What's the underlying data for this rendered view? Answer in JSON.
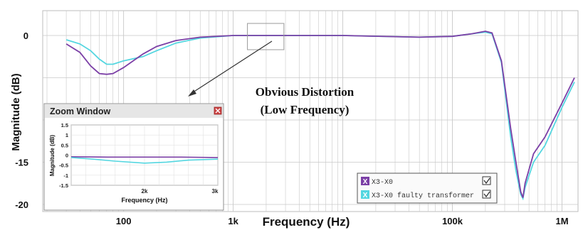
{
  "colors": {
    "series1": "#7b3fa6",
    "series2": "#53d6e0",
    "grid": "#c8c8c8",
    "zoom_box": "#9a9a9a",
    "zoom_title_bg": "#e6e6e6",
    "zoom_close": "#cc4444",
    "legend_bg": "#fafafa"
  },
  "icons": {
    "zoom_close": "close-icon",
    "legend_toggle": "checkbox-icon"
  },
  "chart_data": [
    {
      "type": "line",
      "title": "",
      "xlabel": "Frequency (Hz)",
      "ylabel": "Magnitude (dB)",
      "xscale": "log",
      "xlim": [
        20,
        1400000
      ],
      "ylim": [
        -21,
        2
      ],
      "yticks": [
        0,
        -15,
        -20
      ],
      "ytick_labels": [
        "0",
        "-15",
        "-20"
      ],
      "xticks": [
        100,
        1000,
        100000,
        1000000
      ],
      "xtick_labels": [
        "100",
        "1k",
        "100k",
        "1M"
      ],
      "grid": true,
      "legend_position": "bottom-right",
      "series": [
        {
          "name": "X3-X0",
          "points": [
            [
              30,
              -1.0
            ],
            [
              40,
              -2.0
            ],
            [
              50,
              -3.6
            ],
            [
              60,
              -4.5
            ],
            [
              70,
              -4.6
            ],
            [
              80,
              -4.5
            ],
            [
              100,
              -3.8
            ],
            [
              150,
              -2.2
            ],
            [
              200,
              -1.3
            ],
            [
              300,
              -0.6
            ],
            [
              500,
              -0.2
            ],
            [
              1000,
              0
            ],
            [
              2000,
              0
            ],
            [
              10000,
              0
            ],
            [
              50000,
              -0.2
            ],
            [
              100000,
              -0.1
            ],
            [
              150000,
              0.2
            ],
            [
              200000,
              0.5
            ],
            [
              230000,
              0.3
            ],
            [
              280000,
              -3.0
            ],
            [
              340000,
              -11.0
            ],
            [
              380000,
              -15.0
            ],
            [
              420000,
              -18.5
            ],
            [
              440000,
              -19.2
            ],
            [
              460000,
              -17.5
            ],
            [
              550000,
              -14.0
            ],
            [
              700000,
              -12.0
            ],
            [
              1000000,
              -8.0
            ],
            [
              1300000,
              -5.0
            ]
          ]
        },
        {
          "name": "X3-X0 faulty transformer",
          "points": [
            [
              30,
              -0.5
            ],
            [
              40,
              -1.0
            ],
            [
              50,
              -1.8
            ],
            [
              60,
              -2.8
            ],
            [
              70,
              -3.4
            ],
            [
              80,
              -3.4
            ],
            [
              100,
              -3.0
            ],
            [
              150,
              -2.5
            ],
            [
              200,
              -1.8
            ],
            [
              300,
              -0.9
            ],
            [
              500,
              -0.3
            ],
            [
              1000,
              0
            ],
            [
              2000,
              0
            ],
            [
              10000,
              0
            ],
            [
              50000,
              -0.2
            ],
            [
              100000,
              -0.1
            ],
            [
              150000,
              0.2
            ],
            [
              200000,
              0.4
            ],
            [
              230000,
              0.2
            ],
            [
              280000,
              -3.2
            ],
            [
              340000,
              -12.0
            ],
            [
              380000,
              -16.0
            ],
            [
              420000,
              -18.8
            ],
            [
              440000,
              -19.3
            ],
            [
              460000,
              -18.0
            ],
            [
              550000,
              -15.0
            ],
            [
              700000,
              -13.0
            ],
            [
              1000000,
              -8.5
            ],
            [
              1300000,
              -5.5
            ]
          ]
        }
      ],
      "annotations": [
        "Obvious Distortion",
        "(Low Frequency)"
      ],
      "zoom_region": {
        "x": [
          1000,
          2500
        ],
        "y": [
          -1.5,
          1.5
        ]
      }
    },
    {
      "type": "line",
      "title": "Zoom Window",
      "xlabel": "Frequency (Hz)",
      "ylabel": "Magnitude (dB)",
      "xscale": "linear",
      "xlim": [
        1000,
        3000
      ],
      "ylim": [
        -1.5,
        1.5
      ],
      "yticks": [
        1.5,
        1,
        0.5,
        0,
        -0.5,
        -1,
        -1.5
      ],
      "ytick_labels": [
        "1.5",
        "1",
        "0.5",
        "0",
        "-0.5",
        "-1",
        "-1.5"
      ],
      "xticks": [
        2000,
        3000
      ],
      "xtick_labels": [
        "2k",
        "3k"
      ],
      "grid": true,
      "series": [
        {
          "name": "X3-X0",
          "points": [
            [
              1000,
              -0.08
            ],
            [
              1500,
              -0.1
            ],
            [
              2000,
              -0.1
            ],
            [
              2500,
              -0.1
            ],
            [
              3000,
              -0.12
            ]
          ]
        },
        {
          "name": "X3-X0 faulty transformer",
          "points": [
            [
              1000,
              -0.12
            ],
            [
              1300,
              -0.2
            ],
            [
              1600,
              -0.3
            ],
            [
              2000,
              -0.4
            ],
            [
              2300,
              -0.35
            ],
            [
              2600,
              -0.25
            ],
            [
              3000,
              -0.2
            ]
          ]
        }
      ]
    }
  ],
  "legend": {
    "items": [
      {
        "label": "X3-X0",
        "marker": "X"
      },
      {
        "label": "X3-X0 faulty transformer",
        "marker": "X"
      }
    ]
  }
}
